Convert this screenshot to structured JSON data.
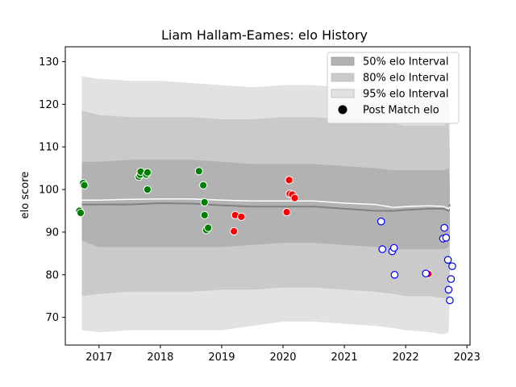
{
  "chart_data": {
    "type": "scatter",
    "title": "Liam Hallam-Eames: elo History",
    "xlabel": "",
    "ylabel": "elo score",
    "xlim": [
      2016.45,
      2023.05
    ],
    "ylim": [
      63.5,
      133.5
    ],
    "x_ticks": [
      2017,
      2018,
      2019,
      2020,
      2021,
      2022,
      2023
    ],
    "y_ticks": [
      70,
      80,
      90,
      100,
      110,
      120,
      130
    ],
    "legend_position": "top-right",
    "legend": [
      {
        "label": "50% elo Interval",
        "color": "#b2b2b2"
      },
      {
        "label": "80% elo Interval",
        "color": "#cacaca"
      },
      {
        "label": "95% elo Interval",
        "color": "#e2e2e2"
      },
      {
        "label": "Post Match elo",
        "color": "#000000"
      }
    ],
    "bands": {
      "x": [
        2016.72,
        2017.0,
        2017.5,
        2018.0,
        2018.5,
        2019.0,
        2019.5,
        2020.0,
        2020.5,
        2021.0,
        2021.5,
        2021.8,
        2022.0,
        2022.4,
        2022.62,
        2022.7,
        2022.72
      ],
      "p95_upper": [
        126.5,
        126.0,
        125.5,
        125.5,
        125.0,
        124.5,
        124.0,
        124.5,
        124.5,
        124.0,
        123.5,
        123.5,
        123.3,
        123.3,
        123.0,
        124.0,
        114.5
      ],
      "p95_lower": [
        67.0,
        66.5,
        67.0,
        67.0,
        67.0,
        67.0,
        68.0,
        69.0,
        69.0,
        68.5,
        68.0,
        67.5,
        67.0,
        66.5,
        66.0,
        66.5,
        75.0
      ],
      "p80_upper": [
        118.5,
        117.5,
        117.0,
        117.0,
        117.0,
        116.5,
        116.5,
        117.0,
        117.0,
        116.5,
        116.0,
        115.5,
        115.0,
        115.0,
        115.0,
        116.0,
        108.0
      ],
      "p80_lower": [
        75.0,
        75.5,
        76.0,
        76.0,
        76.0,
        76.5,
        76.5,
        77.0,
        77.0,
        76.5,
        76.0,
        75.5,
        75.0,
        75.0,
        74.5,
        74.5,
        81.0
      ],
      "p50_upper": [
        106.5,
        106.5,
        107.0,
        107.0,
        107.0,
        106.5,
        106.0,
        106.0,
        106.0,
        105.5,
        105.0,
        104.5,
        104.5,
        104.5,
        104.5,
        105.0,
        101.0
      ],
      "p50_lower": [
        88.0,
        86.5,
        86.5,
        86.5,
        86.5,
        86.5,
        87.0,
        87.5,
        87.5,
        87.0,
        86.5,
        86.0,
        86.0,
        86.0,
        86.0,
        86.5,
        88.5
      ],
      "median": [
        96.5,
        96.5,
        96.5,
        96.8,
        96.7,
        96.3,
        96.0,
        96.0,
        96.0,
        95.5,
        95.0,
        95.0,
        95.2,
        95.5,
        95.5,
        95.0,
        96.5
      ],
      "mean": [
        97.5,
        97.5,
        97.7,
        97.8,
        97.8,
        97.5,
        97.3,
        97.3,
        97.3,
        96.8,
        96.5,
        95.8,
        96.0,
        96.2,
        96.0,
        95.5,
        96.0
      ]
    },
    "series": [
      {
        "color": "#008000",
        "x": [
          2016.68,
          2016.7,
          2016.74,
          2016.76,
          2017.65,
          2017.67,
          2017.68,
          2017.77,
          2017.79,
          2017.79,
          2018.63,
          2018.7,
          2018.72,
          2018.72,
          2018.75,
          2018.78
        ],
        "y": [
          95.0,
          94.5,
          101.5,
          101.0,
          103.0,
          103.5,
          104.2,
          103.5,
          104.0,
          100.0,
          104.3,
          101.0,
          97.0,
          94.0,
          90.5,
          91.0
        ]
      },
      {
        "color": "#ff0000",
        "x": [
          2019.2,
          2019.22,
          2019.32,
          2020.06,
          2020.1,
          2020.11,
          2020.15,
          2020.19,
          2022.37
        ],
        "y": [
          90.2,
          94.0,
          93.6,
          94.7,
          102.2,
          99.0,
          98.8,
          98.0,
          80.2
        ]
      },
      {
        "color": "#0000ff",
        "x": [
          2021.6,
          2021.62,
          2021.78,
          2021.81,
          2021.82,
          2022.33,
          2022.61,
          2022.63,
          2022.66,
          2022.69,
          2022.7,
          2022.72,
          2022.74,
          2022.76
        ],
        "y": [
          92.5,
          86.0,
          85.5,
          86.3,
          80.0,
          80.3,
          88.5,
          91.0,
          88.7,
          83.5,
          76.5,
          74.0,
          79.0,
          82.0
        ]
      }
    ]
  }
}
